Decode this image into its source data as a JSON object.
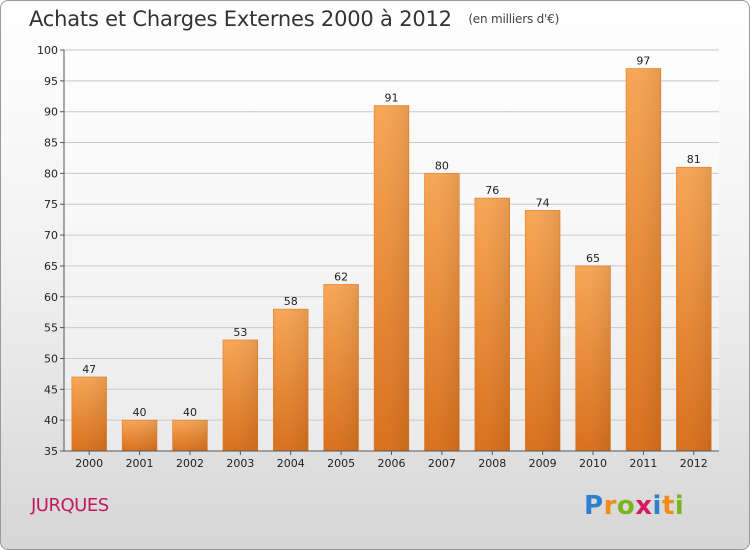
{
  "header": {
    "title": "Achats et Charges Externes 2000 à 2012",
    "subtitle": "(en milliers d'€)"
  },
  "footer": {
    "commune": "JURQUES",
    "logo": {
      "letters": [
        "P",
        "r",
        "o",
        "x",
        "i",
        "t",
        "i"
      ],
      "colors": [
        "#2f7fd0",
        "#f08c1a",
        "#7ab51d",
        "#d81b60",
        "#2f7fd0",
        "#f08c1a",
        "#7ab51d"
      ]
    }
  },
  "chart_data": {
    "type": "bar",
    "title": "Achats et Charges Externes 2000 à 2012",
    "subtitle": "(en milliers d'€)",
    "categories": [
      "2000",
      "2001",
      "2002",
      "2003",
      "2004",
      "2005",
      "2006",
      "2007",
      "2008",
      "2009",
      "2010",
      "2011",
      "2012"
    ],
    "values": [
      47,
      40,
      40,
      53,
      58,
      62,
      91,
      80,
      76,
      74,
      65,
      97,
      81
    ],
    "ylim": [
      35,
      100
    ],
    "yticks": [
      35,
      40,
      45,
      50,
      55,
      60,
      65,
      70,
      75,
      80,
      85,
      90,
      95,
      100
    ],
    "grid": true,
    "bar_color": "#f08a2c",
    "xlabel": "",
    "ylabel": ""
  }
}
